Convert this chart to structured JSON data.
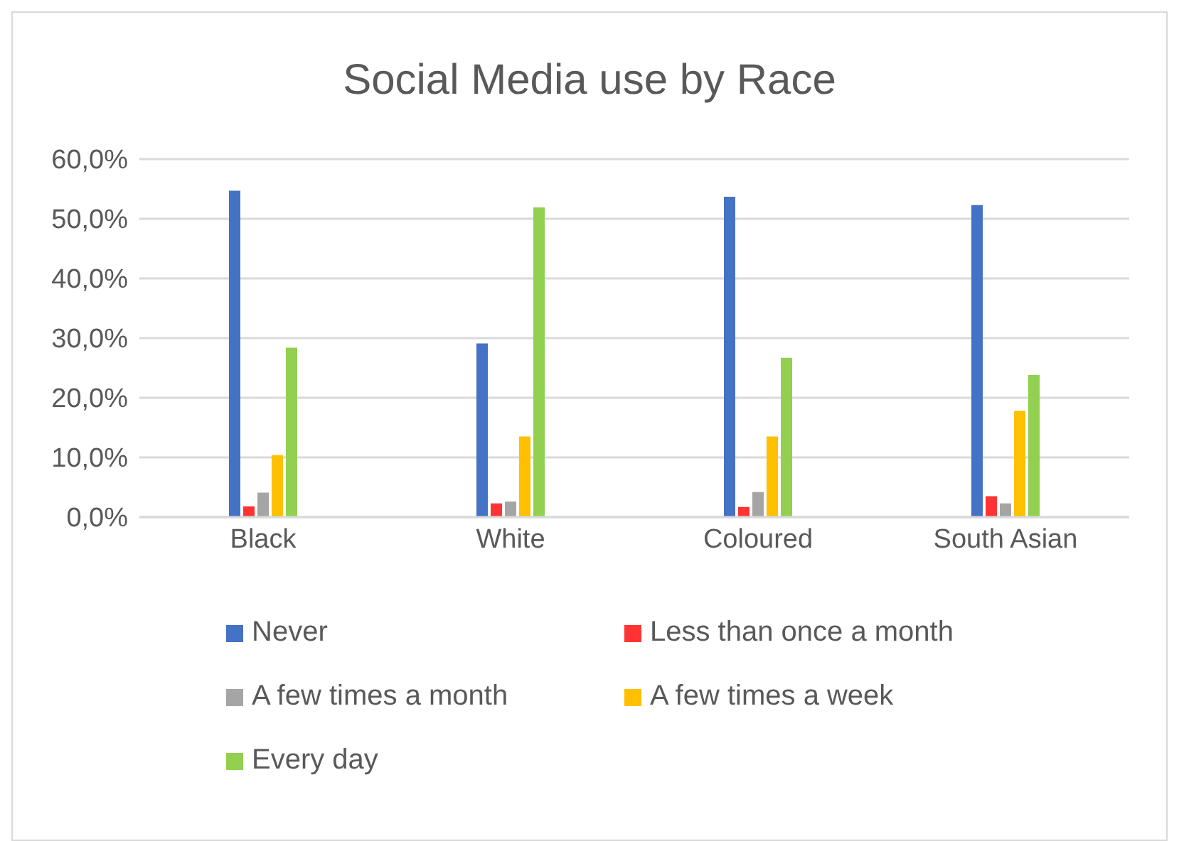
{
  "chart_data": {
    "type": "bar",
    "title": "Social Media use by Race",
    "categories": [
      "Black",
      "White",
      "Coloured",
      "South Asian"
    ],
    "series": [
      {
        "name": "Never",
        "color": "#4472c4",
        "values": [
          54.7,
          29.1,
          53.7,
          52.3
        ]
      },
      {
        "name": "Less than once a month",
        "color": "#ff3333",
        "values": [
          1.8,
          2.3,
          1.7,
          3.5
        ]
      },
      {
        "name": "A few times a month",
        "color": "#a5a5a5",
        "values": [
          4.1,
          2.6,
          4.2,
          2.3
        ]
      },
      {
        "name": "A few times a week",
        "color": "#ffc000",
        "values": [
          10.4,
          13.5,
          13.5,
          17.8
        ]
      },
      {
        "name": "Every day",
        "color": "#92d050",
        "values": [
          28.4,
          51.9,
          26.7,
          23.8
        ]
      }
    ],
    "ylim": [
      0,
      60
    ],
    "yticks": [
      {
        "value": 0,
        "label": "0,0%"
      },
      {
        "value": 10,
        "label": "10,0%"
      },
      {
        "value": 20,
        "label": "20,0%"
      },
      {
        "value": 30,
        "label": "30,0%"
      },
      {
        "value": 40,
        "label": "40,0%"
      },
      {
        "value": 50,
        "label": "50,0%"
      },
      {
        "value": 60,
        "label": "60,0%"
      }
    ],
    "grid": "y",
    "legend": "bottom"
  }
}
